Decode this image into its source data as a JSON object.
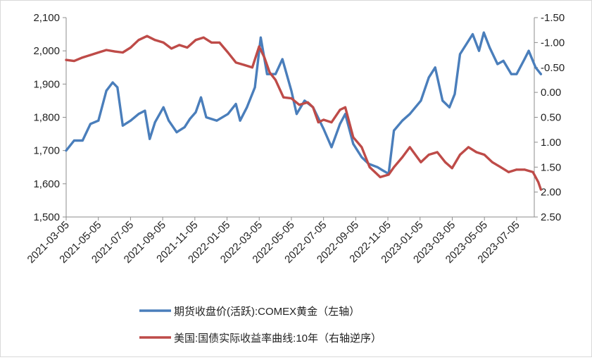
{
  "chart_data": {
    "type": "line",
    "title": "",
    "xlabel": "",
    "x_tick_labels": [
      "2021-03-05",
      "2021-05-05",
      "2021-07-05",
      "2021-09-05",
      "2021-11-05",
      "2022-01-05",
      "2022-03-05",
      "2022-05-05",
      "2022-07-05",
      "2022-09-05",
      "2022-11-05",
      "2023-01-05",
      "2023-03-05",
      "2023-05-05",
      "2023-07-05"
    ],
    "y_left": {
      "ylim": [
        1500,
        2100
      ],
      "ticks": [
        "1,500",
        "1,600",
        "1,700",
        "1,800",
        "1,900",
        "2,000",
        "2,100"
      ]
    },
    "y_right": {
      "ylim": [
        2.5,
        -1.5
      ],
      "inverted": true,
      "ticks": [
        "2.50",
        "2.00",
        "1.50",
        "1.00",
        "0.50",
        "0.00",
        "-0.50",
        "-1.00",
        "-1.50"
      ]
    },
    "grid": false,
    "legend_position": "bottom",
    "series": [
      {
        "name": "期货收盘价(活跃):COMEX黄金（左轴）",
        "axis": "left",
        "color": "#4a7ebb",
        "points": [
          [
            "2021-03-05",
            1700
          ],
          [
            "2021-03-20",
            1730
          ],
          [
            "2021-04-05",
            1730
          ],
          [
            "2021-04-20",
            1780
          ],
          [
            "2021-05-05",
            1790
          ],
          [
            "2021-05-20",
            1880
          ],
          [
            "2021-06-01",
            1905
          ],
          [
            "2021-06-10",
            1890
          ],
          [
            "2021-06-20",
            1775
          ],
          [
            "2021-07-05",
            1790
          ],
          [
            "2021-07-20",
            1810
          ],
          [
            "2021-08-01",
            1820
          ],
          [
            "2021-08-10",
            1735
          ],
          [
            "2021-08-20",
            1785
          ],
          [
            "2021-09-05",
            1830
          ],
          [
            "2021-09-15",
            1790
          ],
          [
            "2021-09-30",
            1755
          ],
          [
            "2021-10-15",
            1770
          ],
          [
            "2021-10-25",
            1795
          ],
          [
            "2021-11-05",
            1815
          ],
          [
            "2021-11-15",
            1860
          ],
          [
            "2021-11-25",
            1800
          ],
          [
            "2021-12-15",
            1790
          ],
          [
            "2022-01-05",
            1810
          ],
          [
            "2022-01-20",
            1840
          ],
          [
            "2022-01-28",
            1790
          ],
          [
            "2022-02-10",
            1830
          ],
          [
            "2022-02-25",
            1890
          ],
          [
            "2022-03-08",
            2040
          ],
          [
            "2022-03-20",
            1930
          ],
          [
            "2022-04-05",
            1930
          ],
          [
            "2022-04-18",
            1975
          ],
          [
            "2022-05-05",
            1880
          ],
          [
            "2022-05-15",
            1810
          ],
          [
            "2022-05-30",
            1850
          ],
          [
            "2022-06-15",
            1830
          ],
          [
            "2022-07-05",
            1765
          ],
          [
            "2022-07-20",
            1710
          ],
          [
            "2022-08-05",
            1780
          ],
          [
            "2022-08-15",
            1810
          ],
          [
            "2022-08-30",
            1720
          ],
          [
            "2022-09-15",
            1680
          ],
          [
            "2022-09-28",
            1660
          ],
          [
            "2022-10-15",
            1650
          ],
          [
            "2022-10-25",
            1640
          ],
          [
            "2022-11-05",
            1630
          ],
          [
            "2022-11-15",
            1760
          ],
          [
            "2022-12-01",
            1790
          ],
          [
            "2022-12-15",
            1810
          ],
          [
            "2023-01-05",
            1850
          ],
          [
            "2023-01-20",
            1920
          ],
          [
            "2023-02-01",
            1950
          ],
          [
            "2023-02-15",
            1850
          ],
          [
            "2023-02-28",
            1830
          ],
          [
            "2023-03-10",
            1870
          ],
          [
            "2023-03-20",
            1990
          ],
          [
            "2023-04-05",
            2030
          ],
          [
            "2023-04-13",
            2050
          ],
          [
            "2023-04-25",
            2000
          ],
          [
            "2023-05-04",
            2055
          ],
          [
            "2023-05-15",
            2010
          ],
          [
            "2023-05-30",
            1960
          ],
          [
            "2023-06-10",
            1970
          ],
          [
            "2023-06-25",
            1930
          ],
          [
            "2023-07-05",
            1930
          ],
          [
            "2023-07-20",
            1975
          ],
          [
            "2023-07-28",
            2000
          ],
          [
            "2023-08-10",
            1950
          ],
          [
            "2023-08-20",
            1930
          ]
        ]
      },
      {
        "name": "美国:国债实际收益率曲线:10年（右轴逆序）",
        "axis": "right",
        "color": "#be4b48",
        "points": [
          [
            "2021-03-05",
            -0.65
          ],
          [
            "2021-03-20",
            -0.63
          ],
          [
            "2021-04-05",
            -0.7
          ],
          [
            "2021-04-20",
            -0.75
          ],
          [
            "2021-05-05",
            -0.8
          ],
          [
            "2021-05-20",
            -0.85
          ],
          [
            "2021-06-05",
            -0.82
          ],
          [
            "2021-06-20",
            -0.8
          ],
          [
            "2021-07-05",
            -0.9
          ],
          [
            "2021-07-20",
            -1.05
          ],
          [
            "2021-08-05",
            -1.13
          ],
          [
            "2021-08-20",
            -1.05
          ],
          [
            "2021-09-05",
            -1.0
          ],
          [
            "2021-09-20",
            -0.88
          ],
          [
            "2021-10-05",
            -0.95
          ],
          [
            "2021-10-20",
            -0.9
          ],
          [
            "2021-11-05",
            -1.05
          ],
          [
            "2021-11-20",
            -1.1
          ],
          [
            "2021-12-05",
            -1.0
          ],
          [
            "2021-12-20",
            -1.0
          ],
          [
            "2022-01-05",
            -0.8
          ],
          [
            "2022-01-20",
            -0.6
          ],
          [
            "2022-02-05",
            -0.55
          ],
          [
            "2022-02-20",
            -0.5
          ],
          [
            "2022-03-05",
            -0.92
          ],
          [
            "2022-03-15",
            -0.7
          ],
          [
            "2022-03-25",
            -0.4
          ],
          [
            "2022-04-05",
            -0.25
          ],
          [
            "2022-04-20",
            0.1
          ],
          [
            "2022-05-05",
            0.12
          ],
          [
            "2022-05-20",
            0.25
          ],
          [
            "2022-06-05",
            0.2
          ],
          [
            "2022-06-15",
            0.3
          ],
          [
            "2022-06-25",
            0.6
          ],
          [
            "2022-07-05",
            0.55
          ],
          [
            "2022-07-20",
            0.6
          ],
          [
            "2022-08-05",
            0.35
          ],
          [
            "2022-08-15",
            0.3
          ],
          [
            "2022-08-30",
            0.9
          ],
          [
            "2022-09-15",
            1.1
          ],
          [
            "2022-09-30",
            1.5
          ],
          [
            "2022-10-10",
            1.6
          ],
          [
            "2022-10-20",
            1.7
          ],
          [
            "2022-11-05",
            1.65
          ],
          [
            "2022-11-15",
            1.5
          ],
          [
            "2022-12-01",
            1.3
          ],
          [
            "2022-12-15",
            1.1
          ],
          [
            "2023-01-05",
            1.4
          ],
          [
            "2023-01-20",
            1.25
          ],
          [
            "2023-02-05",
            1.2
          ],
          [
            "2023-02-20",
            1.4
          ],
          [
            "2023-03-05",
            1.52
          ],
          [
            "2023-03-20",
            1.25
          ],
          [
            "2023-04-05",
            1.1
          ],
          [
            "2023-04-20",
            1.2
          ],
          [
            "2023-05-05",
            1.25
          ],
          [
            "2023-05-20",
            1.4
          ],
          [
            "2023-06-05",
            1.5
          ],
          [
            "2023-06-20",
            1.6
          ],
          [
            "2023-07-05",
            1.55
          ],
          [
            "2023-07-20",
            1.55
          ],
          [
            "2023-08-05",
            1.6
          ],
          [
            "2023-08-15",
            1.8
          ],
          [
            "2023-08-20",
            1.95
          ]
        ]
      }
    ]
  }
}
